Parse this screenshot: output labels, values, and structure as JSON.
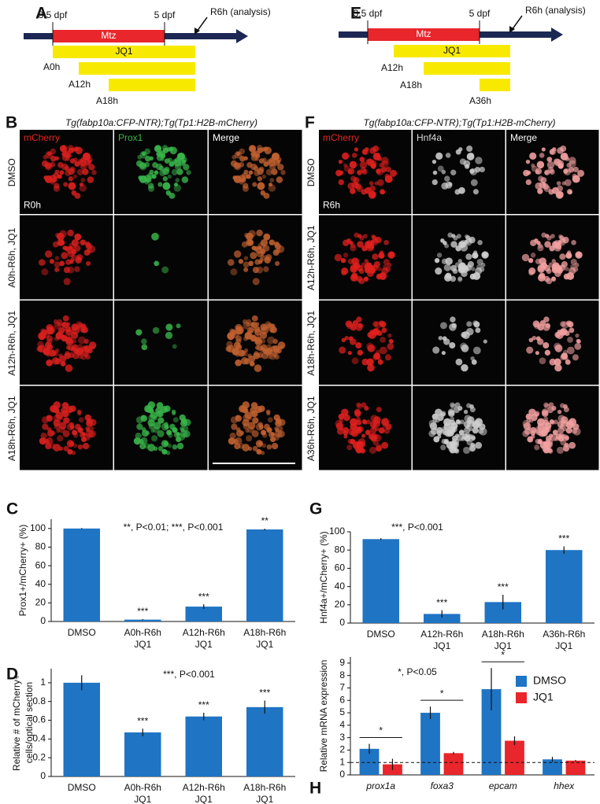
{
  "panel_a": {
    "letter": "A",
    "start": "3.5 dpf",
    "end": "5 dpf",
    "analysis": "R6h (analysis)",
    "treatment": "Mtz",
    "drug": "JQ1",
    "starts": [
      "A0h",
      "A12h",
      "A18h"
    ]
  },
  "panel_e": {
    "letter": "E",
    "start": "3.5 dpf",
    "end": "5 dpf",
    "analysis": "R6h (analysis)",
    "treatment": "Mtz",
    "drug": "JQ1",
    "starts": [
      "A12h",
      "A18h",
      "A36h"
    ]
  },
  "panel_b": {
    "letter": "B",
    "title": "Tg(fabp10a:CFP-NTR);Tg(Tp1:H2B-mCherry)",
    "columns": [
      "mCherry",
      "Prox1",
      "Merge"
    ],
    "rows": [
      "DMSO",
      "A0h-R6h, JQ1",
      "A12h-R6h, JQ1",
      "A18h-R6h, JQ1"
    ],
    "time": "R0h"
  },
  "panel_f": {
    "letter": "F",
    "title": "Tg(fabp10a:CFP-NTR);Tg(Tp1:H2B-mCherry)",
    "columns": [
      "mCherry",
      "Hnf4a",
      "Merge"
    ],
    "rows": [
      "DMSO",
      "A12h-R6h, JQ1",
      "A18h-R6h, JQ1",
      "A36h-R6h, JQ1"
    ],
    "time": "R6h"
  },
  "chart_data": [
    {
      "type": "bar",
      "letter": "C",
      "ylabel": [
        "Prox1+/mCherry+ (%)"
      ],
      "annotation": "**, P<0.01; ***, P<0.001",
      "categories": [
        [
          "DMSO"
        ],
        [
          "A0h-R6h",
          "JQ1"
        ],
        [
          "A12h-R6h",
          "JQ1"
        ],
        [
          "A18h-R6h",
          "JQ1"
        ]
      ],
      "values": [
        100,
        2,
        16,
        99
      ],
      "errors": [
        0.5,
        0.5,
        2.5,
        0.8
      ],
      "significance": [
        null,
        "***",
        "***",
        "**"
      ],
      "color": "#1f74c4",
      "ylim": [
        0,
        110
      ],
      "yticks": [
        0,
        20,
        40,
        60,
        80,
        100
      ]
    },
    {
      "type": "bar",
      "letter": "D",
      "ylabel": [
        "Relative # of mCherry+",
        "cells/optical section"
      ],
      "annotation": "***, P<0.001",
      "categories": [
        [
          "DMSO"
        ],
        [
          "A0h-R6h",
          "JQ1"
        ],
        [
          "A12h-R6h",
          "JQ1"
        ],
        [
          "A18h-R6h",
          "JQ1"
        ]
      ],
      "values": [
        1,
        0.47,
        0.64,
        0.74
      ],
      "errors": [
        0.08,
        0.04,
        0.04,
        0.07
      ],
      "significance": [
        null,
        "***",
        "***",
        "***"
      ],
      "color": "#1f74c4",
      "ylim": [
        0,
        1.15
      ],
      "yticks": [
        0,
        0.2,
        0.4,
        0.6,
        0.8,
        1
      ]
    },
    {
      "type": "bar",
      "letter": "G",
      "ylabel": [
        "Hnf4a+/mCherry+ (%)"
      ],
      "annotation": "***, P<0.001",
      "categories": [
        [
          "DMSO"
        ],
        [
          "A12h-R6h",
          "JQ1"
        ],
        [
          "A18h-R6h",
          "JQ1"
        ],
        [
          "A36h-R6h",
          "JQ1"
        ]
      ],
      "values": [
        92,
        10,
        23,
        80
      ],
      "errors": [
        1,
        4,
        8,
        4
      ],
      "significance": [
        null,
        "***",
        "***",
        "***"
      ],
      "color": "#1f74c4",
      "ylim": [
        0,
        100
      ],
      "yticks": [
        0,
        20,
        40,
        60,
        80,
        100
      ]
    },
    {
      "type": "grouped_bar",
      "letter": "H",
      "ylabel": [
        "Relative mRNA expression"
      ],
      "annotation": "*, P<0.05",
      "categories": [
        [
          "prox1a"
        ],
        [
          "foxa3"
        ],
        [
          "epcam"
        ],
        [
          "hhex"
        ]
      ],
      "series": [
        {
          "name": "DMSO",
          "color": "#1f74c4",
          "values": [
            2.1,
            5.0,
            6.9,
            1.25
          ],
          "errors": [
            0.4,
            0.5,
            1.7,
            0.2
          ]
        },
        {
          "name": "JQ1",
          "color": "#e8262b",
          "values": [
            0.85,
            1.75,
            2.75,
            1.15
          ],
          "errors": [
            0.45,
            0.1,
            0.35,
            0.05
          ]
        }
      ],
      "significance": [
        "*",
        "*",
        "*",
        null
      ],
      "reference_line": 1,
      "ylim": [
        0,
        9.5
      ],
      "yticks": [
        0,
        1,
        2,
        3,
        4,
        5,
        6,
        7,
        8,
        9
      ]
    }
  ]
}
